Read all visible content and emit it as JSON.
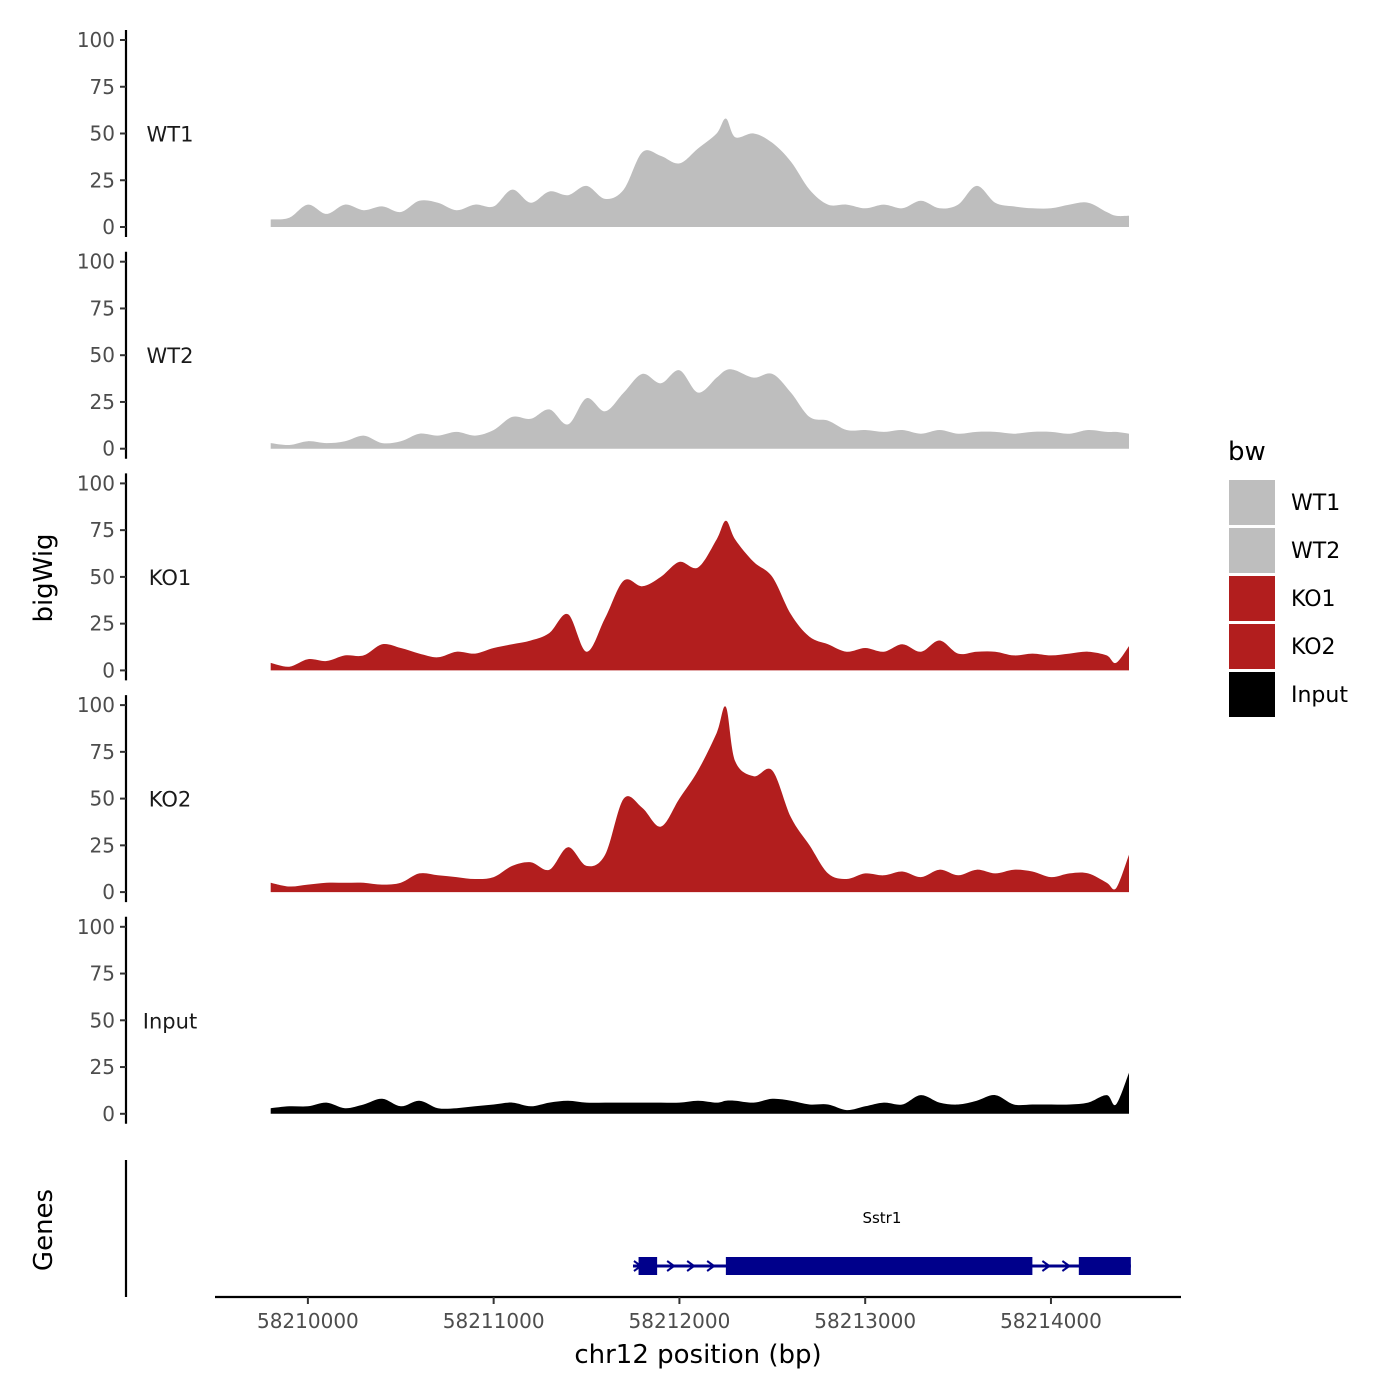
{
  "chart_data": {
    "type": "area",
    "ylabel": "bigWig",
    "xlabel": "chr12 position (bp)",
    "genes_label": "Genes",
    "xlim": [
      58209500,
      58214700
    ],
    "ylim": [
      0,
      100
    ],
    "yticks": [
      0,
      25,
      50,
      75,
      100
    ],
    "xticks": [
      58210000,
      58211000,
      58212000,
      58213000,
      58214000
    ],
    "legend": {
      "title": "bw",
      "entries": [
        {
          "label": "WT1",
          "color": "#bebebe"
        },
        {
          "label": "WT2",
          "color": "#bebebe"
        },
        {
          "label": "KO1",
          "color": "#b21e1e"
        },
        {
          "label": "KO2",
          "color": "#b21e1e"
        },
        {
          "label": "Input",
          "color": "#000000"
        }
      ]
    },
    "x": [
      58209800,
      58209900,
      58210000,
      58210100,
      58210200,
      58210300,
      58210400,
      58210500,
      58210600,
      58210700,
      58210800,
      58210900,
      58211000,
      58211100,
      58211200,
      58211300,
      58211400,
      58211500,
      58211600,
      58211700,
      58211800,
      58211900,
      58212000,
      58212100,
      58212200,
      58212250,
      58212300,
      58212400,
      58212500,
      58212600,
      58212700,
      58212800,
      58212900,
      58213000,
      58213100,
      58213200,
      58213300,
      58213400,
      58213500,
      58213600,
      58213700,
      58213800,
      58213900,
      58214000,
      58214100,
      58214200,
      58214300,
      58214350,
      58214420
    ],
    "series": [
      {
        "name": "WT1",
        "color": "#bebebe",
        "values": [
          4,
          5,
          12,
          7,
          12,
          9,
          11,
          8,
          14,
          13,
          9,
          12,
          11,
          20,
          13,
          19,
          17,
          22,
          15,
          20,
          40,
          38,
          34,
          42,
          50,
          58,
          48,
          50,
          45,
          35,
          20,
          12,
          12,
          10,
          12,
          10,
          14,
          10,
          12,
          22,
          13,
          11,
          10,
          10,
          12,
          13,
          8,
          6,
          6
        ]
      },
      {
        "name": "WT2",
        "color": "#bebebe",
        "values": [
          3,
          2,
          4,
          3,
          4,
          7,
          3,
          4,
          8,
          7,
          9,
          7,
          10,
          17,
          16,
          21,
          13,
          27,
          20,
          30,
          40,
          35,
          42,
          30,
          38,
          42,
          42,
          38,
          40,
          30,
          17,
          15,
          10,
          10,
          9,
          10,
          8,
          10,
          8,
          9,
          9,
          8,
          9,
          9,
          8,
          10,
          9,
          9,
          8
        ]
      },
      {
        "name": "KO1",
        "color": "#b21e1e",
        "values": [
          4,
          2,
          6,
          5,
          8,
          8,
          14,
          12,
          9,
          7,
          10,
          9,
          12,
          14,
          16,
          20,
          30,
          10,
          28,
          48,
          45,
          50,
          58,
          55,
          70,
          80,
          70,
          58,
          50,
          30,
          18,
          14,
          10,
          12,
          10,
          14,
          10,
          16,
          9,
          10,
          10,
          8,
          9,
          8,
          9,
          10,
          8,
          4,
          13
        ]
      },
      {
        "name": "KO2",
        "color": "#b21e1e",
        "values": [
          5,
          3,
          4,
          5,
          5,
          5,
          4,
          5,
          10,
          9,
          8,
          7,
          8,
          14,
          16,
          12,
          24,
          14,
          20,
          50,
          45,
          35,
          50,
          65,
          85,
          99,
          70,
          62,
          65,
          40,
          25,
          10,
          7,
          10,
          9,
          11,
          8,
          12,
          9,
          12,
          10,
          12,
          11,
          8,
          10,
          10,
          5,
          2,
          20
        ]
      },
      {
        "name": "Input",
        "color": "#000000",
        "values": [
          3,
          4,
          4,
          6,
          3,
          5,
          8,
          4,
          7,
          3,
          3,
          4,
          5,
          6,
          4,
          6,
          7,
          6,
          6,
          6,
          6,
          6,
          6,
          7,
          6,
          7,
          7,
          6,
          8,
          7,
          5,
          5,
          2,
          4,
          6,
          5,
          10,
          6,
          5,
          7,
          10,
          5,
          5,
          5,
          5,
          6,
          10,
          5,
          22
        ]
      }
    ],
    "genes": [
      {
        "name": "Sstr1",
        "start": 58211750,
        "end": 58214430,
        "exons": [
          [
            58211780,
            58211880
          ],
          [
            58212250,
            58213900
          ],
          [
            58214150,
            58214430
          ]
        ],
        "color": "#00008b"
      }
    ]
  }
}
